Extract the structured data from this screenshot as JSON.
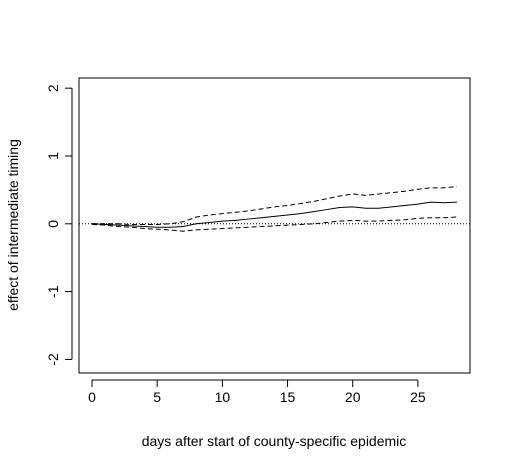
{
  "chart_data": {
    "type": "line",
    "title": "",
    "xlabel": "days after start of county-specific epidemic",
    "ylabel": "effect of intermediate timing",
    "xlim": [
      -1,
      29
    ],
    "ylim": [
      -2.2,
      2.15
    ],
    "xticks": [
      0,
      5,
      10,
      15,
      20,
      25
    ],
    "yticks": [
      -2,
      -1,
      0,
      1,
      2
    ],
    "grid": false,
    "legend": "none",
    "reference_line": {
      "y": 0,
      "style": "dotted"
    },
    "series": [
      {
        "style": "solid",
        "x": [
          0,
          1,
          2,
          3,
          4,
          5,
          6,
          7,
          8,
          9,
          10,
          11,
          12,
          13,
          14,
          15,
          16,
          17,
          18,
          19,
          20,
          21,
          22,
          23,
          24,
          25,
          26,
          27,
          28
        ],
        "values": [
          0.0,
          -0.01,
          -0.02,
          -0.03,
          -0.04,
          -0.05,
          -0.05,
          -0.04,
          0.0,
          0.02,
          0.04,
          0.05,
          0.07,
          0.09,
          0.11,
          0.13,
          0.15,
          0.18,
          0.21,
          0.24,
          0.25,
          0.23,
          0.23,
          0.25,
          0.27,
          0.29,
          0.32,
          0.31,
          0.32
        ]
      },
      {
        "style": "dashed",
        "x": [
          0,
          1,
          2,
          3,
          4,
          5,
          6,
          7,
          8,
          9,
          10,
          11,
          12,
          13,
          14,
          15,
          16,
          17,
          18,
          19,
          20,
          21,
          22,
          23,
          24,
          25,
          26,
          27,
          28
        ],
        "values": [
          0.0,
          0.0,
          0.0,
          -0.01,
          -0.01,
          -0.01,
          0.0,
          0.03,
          0.1,
          0.13,
          0.15,
          0.17,
          0.19,
          0.22,
          0.25,
          0.27,
          0.3,
          0.33,
          0.37,
          0.41,
          0.44,
          0.42,
          0.44,
          0.46,
          0.48,
          0.51,
          0.53,
          0.53,
          0.55
        ]
      },
      {
        "style": "dashed",
        "x": [
          0,
          1,
          2,
          3,
          4,
          5,
          6,
          7,
          8,
          9,
          10,
          11,
          12,
          13,
          14,
          15,
          16,
          17,
          18,
          19,
          20,
          21,
          22,
          23,
          24,
          25,
          26,
          27,
          28
        ],
        "values": [
          -0.01,
          -0.02,
          -0.04,
          -0.05,
          -0.07,
          -0.08,
          -0.09,
          -0.11,
          -0.09,
          -0.08,
          -0.07,
          -0.06,
          -0.05,
          -0.04,
          -0.03,
          -0.02,
          -0.01,
          0.0,
          0.02,
          0.04,
          0.05,
          0.04,
          0.04,
          0.05,
          0.06,
          0.08,
          0.09,
          0.09,
          0.1
        ]
      }
    ]
  },
  "colors": {
    "background": "#ffffff",
    "ink": "#000000"
  }
}
